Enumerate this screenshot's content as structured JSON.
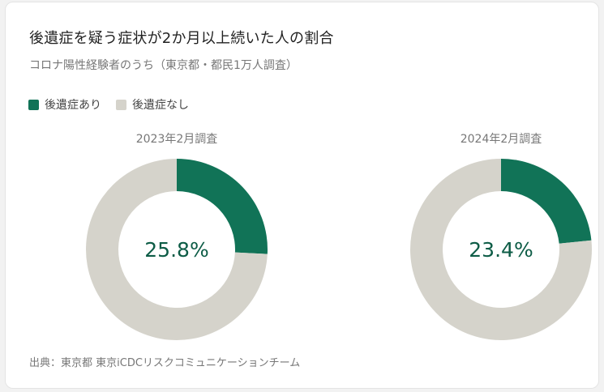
{
  "title": "後遺症を疑う症状が2か月以上続いた人の割合",
  "subtitle": "コロナ陽性経験者のうち（東京都・都民1万人調査）",
  "legend": [
    {
      "label": "後遺症あり",
      "color": "#117357"
    },
    {
      "label": "後遺症なし",
      "color": "#d5d3cb"
    }
  ],
  "source": "出典：東京都 東京iCDCリスクコミュニケーションチーム",
  "chart_data": [
    {
      "type": "pie",
      "title": "2023年2月調査",
      "center_label": "25.8%",
      "slices": [
        {
          "name": "後遺症あり",
          "value": 25.8
        },
        {
          "name": "後遺症なし",
          "value": 74.2
        }
      ],
      "colors": [
        "#117357",
        "#d5d3cb"
      ]
    },
    {
      "type": "pie",
      "title": "2024年2月調査",
      "center_label": "23.4%",
      "slices": [
        {
          "name": "後遺症あり",
          "value": 23.4
        },
        {
          "name": "後遺症なし",
          "value": 76.6
        }
      ],
      "colors": [
        "#117357",
        "#d5d3cb"
      ]
    }
  ]
}
